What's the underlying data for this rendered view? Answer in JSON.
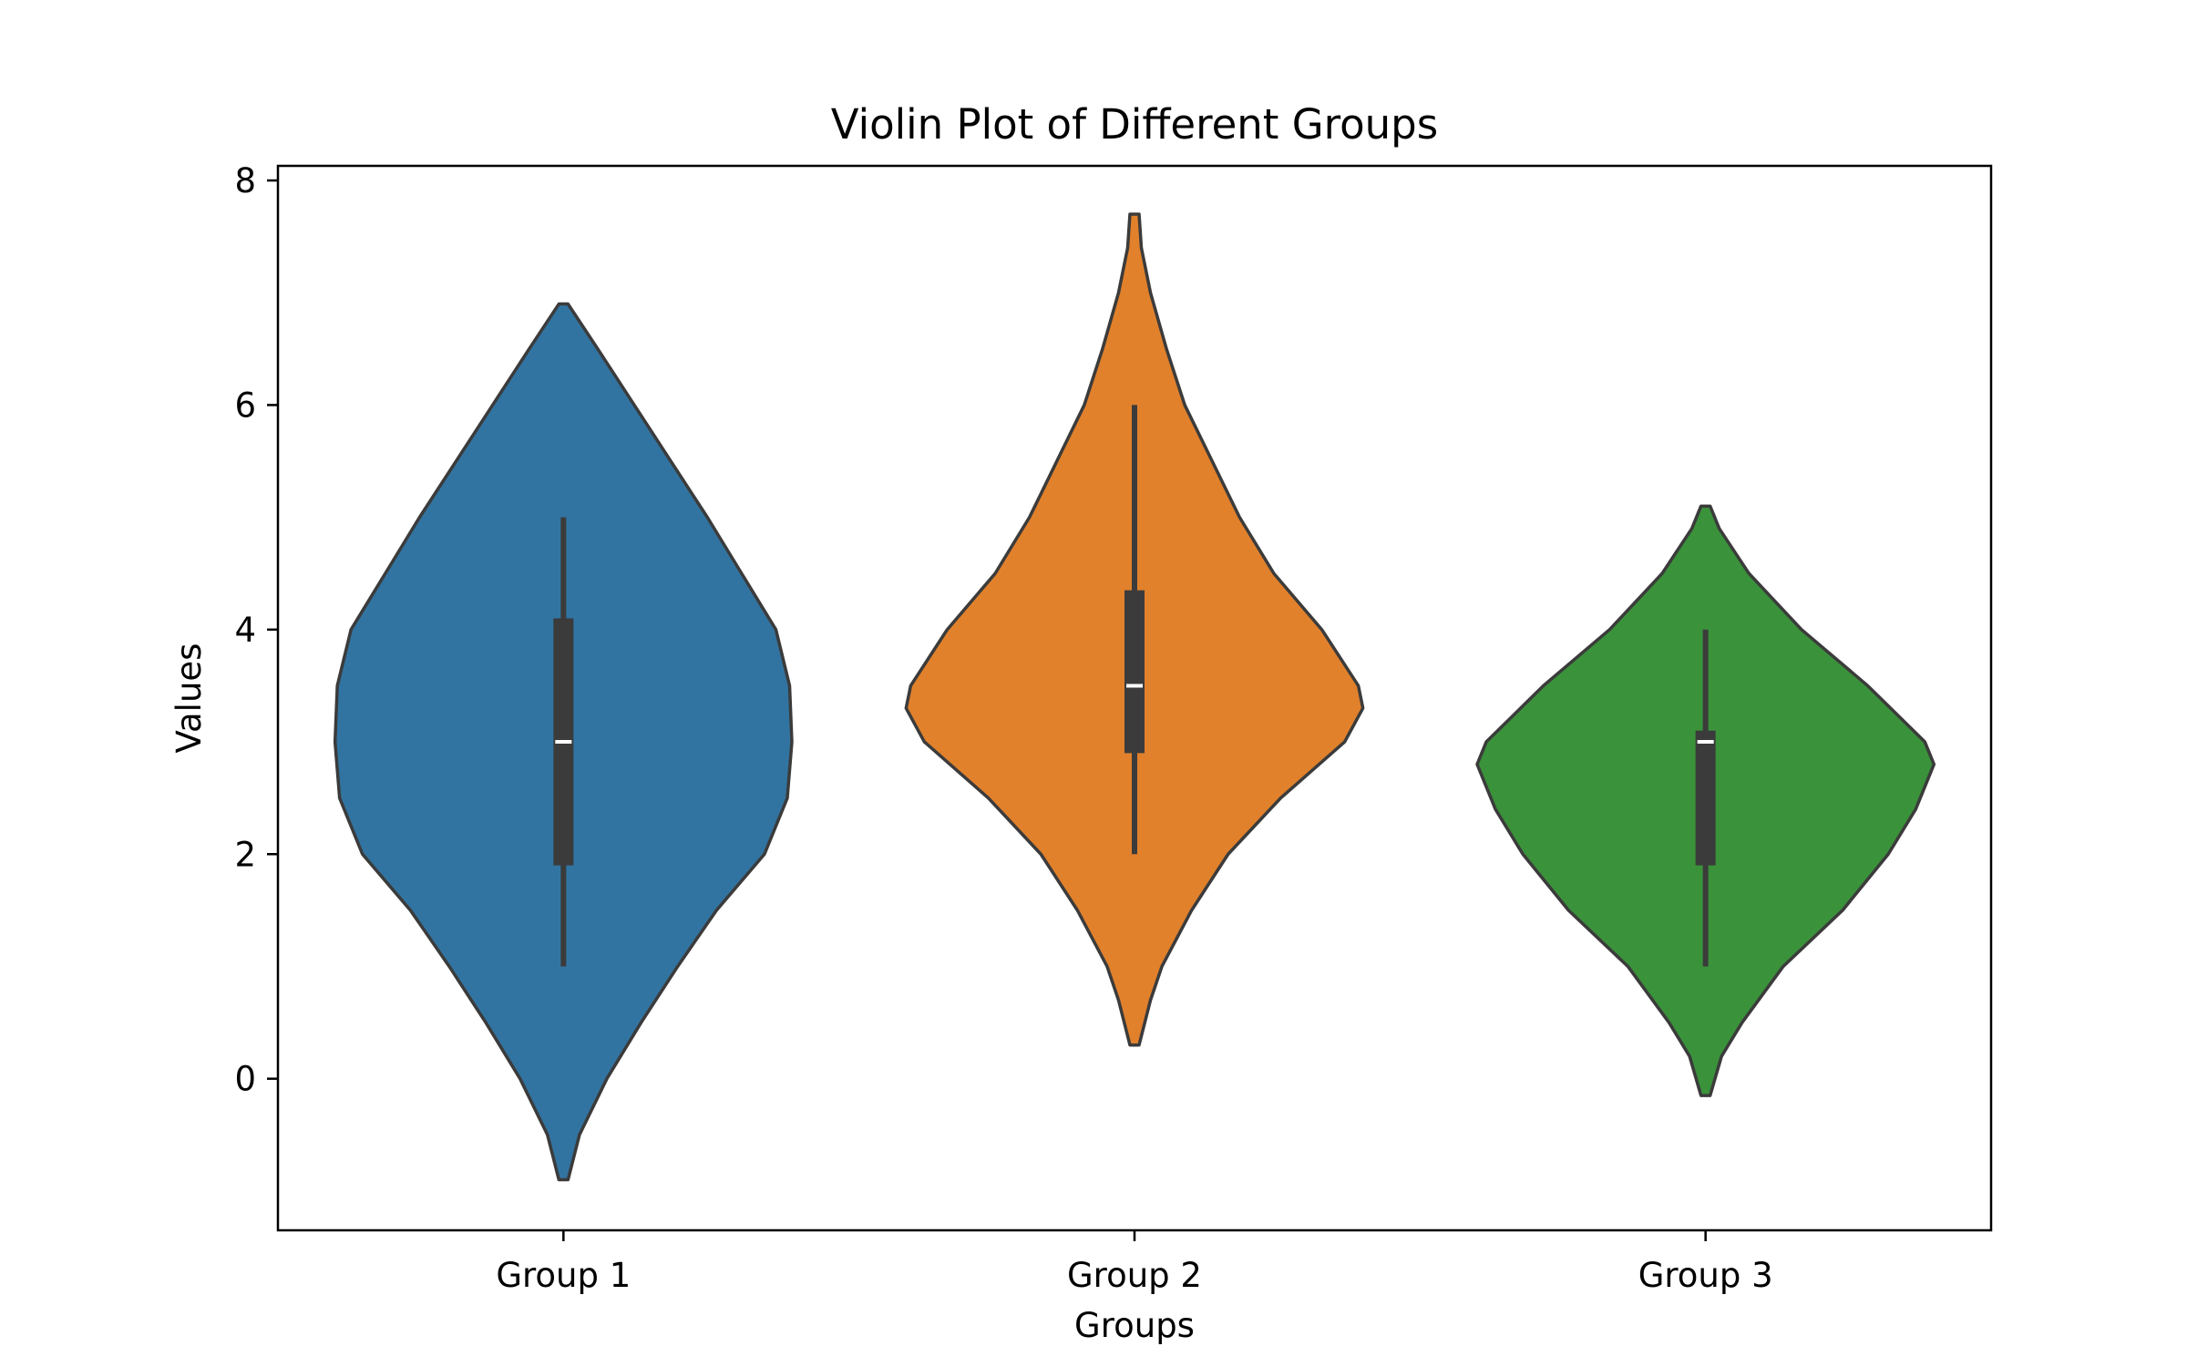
{
  "chart_data": {
    "type": "violin",
    "title": "Violin Plot of Different Groups",
    "xlabel": "Groups",
    "ylabel": "Values",
    "ylim": [
      -1.35,
      8.13
    ],
    "yticks": [
      0,
      2,
      4,
      6,
      8
    ],
    "grid": false,
    "categories": [
      "Group 1",
      "Group 2",
      "Group 3"
    ],
    "series": [
      {
        "category": "Group 1",
        "color": "#3274a1",
        "min": 1.0,
        "q1": 1.9,
        "median": 3.0,
        "q3": 4.1,
        "max": 5.0,
        "density": [
          [
            -0.9,
            0.02
          ],
          [
            -0.5,
            0.07
          ],
          [
            0.0,
            0.19
          ],
          [
            0.5,
            0.34
          ],
          [
            1.0,
            0.5
          ],
          [
            1.5,
            0.67
          ],
          [
            2.0,
            0.88
          ],
          [
            2.5,
            0.98
          ],
          [
            3.0,
            1.0
          ],
          [
            3.5,
            0.99
          ],
          [
            4.0,
            0.93
          ],
          [
            4.5,
            0.78
          ],
          [
            5.0,
            0.63
          ],
          [
            5.5,
            0.47
          ],
          [
            6.0,
            0.31
          ],
          [
            6.5,
            0.15
          ],
          [
            6.9,
            0.02
          ]
        ]
      },
      {
        "category": "Group 2",
        "color": "#e1812c",
        "min": 2.0,
        "q1": 2.9,
        "median": 3.5,
        "q3": 4.35,
        "max": 6.0,
        "density": [
          [
            0.3,
            0.02
          ],
          [
            0.7,
            0.07
          ],
          [
            1.0,
            0.12
          ],
          [
            1.5,
            0.25
          ],
          [
            2.0,
            0.41
          ],
          [
            2.5,
            0.64
          ],
          [
            3.0,
            0.92
          ],
          [
            3.3,
            1.0
          ],
          [
            3.5,
            0.98
          ],
          [
            4.0,
            0.82
          ],
          [
            4.5,
            0.61
          ],
          [
            5.0,
            0.46
          ],
          [
            5.5,
            0.34
          ],
          [
            6.0,
            0.22
          ],
          [
            6.5,
            0.14
          ],
          [
            7.0,
            0.07
          ],
          [
            7.4,
            0.03
          ],
          [
            7.7,
            0.02
          ]
        ]
      },
      {
        "category": "Group 3",
        "color": "#3a923a",
        "min": 1.0,
        "q1": 1.9,
        "median": 3.0,
        "q3": 3.1,
        "max": 4.0,
        "density": [
          [
            -0.15,
            0.02
          ],
          [
            0.2,
            0.07
          ],
          [
            0.5,
            0.16
          ],
          [
            1.0,
            0.34
          ],
          [
            1.5,
            0.6
          ],
          [
            2.0,
            0.8
          ],
          [
            2.4,
            0.92
          ],
          [
            2.8,
            1.0
          ],
          [
            3.0,
            0.96
          ],
          [
            3.5,
            0.71
          ],
          [
            4.0,
            0.42
          ],
          [
            4.5,
            0.19
          ],
          [
            4.9,
            0.06
          ],
          [
            5.1,
            0.02
          ]
        ]
      }
    ]
  }
}
